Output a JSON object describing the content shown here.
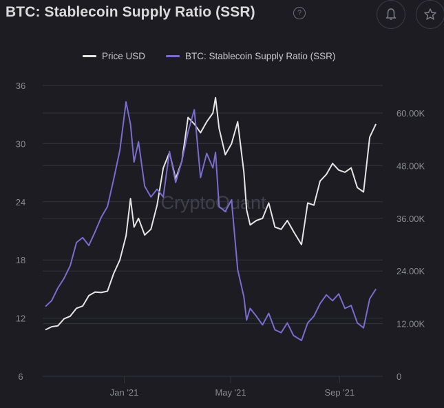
{
  "header": {
    "title": "BTC: Stablecoin Supply Ratio (SSR)",
    "help_icon": "?",
    "alert_icon": "bell-icon",
    "favorite_icon": "star-icon"
  },
  "colors": {
    "background": "#1c1c22",
    "price": "#e6e6e6",
    "ssr": "#7b6ccf",
    "grid": "#33333d",
    "axis_text": "#8a8a92",
    "watermark": "#3f3f4c"
  },
  "watermark": "CryptoQuant",
  "chart_data": {
    "type": "line",
    "title": "BTC: Stablecoin Supply Ratio (SSR)",
    "xlabel": "",
    "legend": [
      "Price USD",
      "BTC: Stablecoin Supply Ratio (SSR)"
    ],
    "legend_placement": "top-center",
    "grid": true,
    "x_ticks": [
      "Jan '21",
      "May '21",
      "Sep '21"
    ],
    "x_tick_dates": [
      "2021-01-01",
      "2021-05-01",
      "2021-09-01"
    ],
    "x_range": [
      "2020-10-04",
      "2021-10-15"
    ],
    "y_left": {
      "label": "SSR",
      "ticks": [
        "36",
        "30",
        "24",
        "18",
        "12",
        "6"
      ],
      "range": [
        6,
        36
      ]
    },
    "y_right": {
      "label": "Price USD",
      "ticks": [
        "60.00K",
        "48.00K",
        "36.00K",
        "24.00K",
        "12.00K",
        "0"
      ],
      "range": [
        0,
        60000
      ]
    },
    "x": [
      "2020-10-04",
      "2020-10-11",
      "2020-10-18",
      "2020-10-25",
      "2020-11-01",
      "2020-11-08",
      "2020-11-15",
      "2020-11-22",
      "2020-11-29",
      "2020-12-06",
      "2020-12-13",
      "2020-12-20",
      "2020-12-27",
      "2021-01-03",
      "2021-01-08",
      "2021-01-12",
      "2021-01-17",
      "2021-01-24",
      "2021-01-31",
      "2021-02-07",
      "2021-02-14",
      "2021-02-21",
      "2021-02-28",
      "2021-03-07",
      "2021-03-14",
      "2021-03-21",
      "2021-03-28",
      "2021-04-04",
      "2021-04-11",
      "2021-04-14",
      "2021-04-18",
      "2021-04-25",
      "2021-05-02",
      "2021-05-09",
      "2021-05-16",
      "2021-05-19",
      "2021-05-23",
      "2021-05-30",
      "2021-06-06",
      "2021-06-13",
      "2021-06-20",
      "2021-06-27",
      "2021-07-04",
      "2021-07-11",
      "2021-07-20",
      "2021-07-27",
      "2021-08-03",
      "2021-08-10",
      "2021-08-17",
      "2021-08-24",
      "2021-08-31",
      "2021-09-07",
      "2021-09-14",
      "2021-09-21",
      "2021-09-28",
      "2021-10-05",
      "2021-10-12"
    ],
    "series": [
      {
        "name": "Price USD",
        "color": "#e6e6e6",
        "axis": "right",
        "values": [
          10600,
          11300,
          11500,
          13100,
          13700,
          15500,
          16000,
          18400,
          19200,
          19100,
          19400,
          23400,
          26500,
          32000,
          40500,
          34000,
          36000,
          32200,
          33500,
          39000,
          47500,
          51000,
          45000,
          49000,
          59000,
          57500,
          55500,
          58000,
          60000,
          63500,
          56500,
          50500,
          53000,
          58000,
          46500,
          38000,
          34500,
          35500,
          36000,
          39500,
          34000,
          33500,
          35500,
          33000,
          30000,
          39500,
          39000,
          44500,
          46000,
          48500,
          47000,
          46500,
          47500,
          43000,
          42000,
          54500,
          57500
        ]
      },
      {
        "name": "BTC: Stablecoin Supply Ratio (SSR)",
        "color": "#7b6ccf",
        "axis": "left",
        "values": [
          13.2,
          13.8,
          15.1,
          16.1,
          17.4,
          19.8,
          20.3,
          19.5,
          20.9,
          22.4,
          23.5,
          26.3,
          29.3,
          34.3,
          32.0,
          28.1,
          30.2,
          25.6,
          24.5,
          25.3,
          24.5,
          29.2,
          26.0,
          28.2,
          31.2,
          33.5,
          26.5,
          29.0,
          27.5,
          29.1,
          23.5,
          23.0,
          24.2,
          17.0,
          14.2,
          11.8,
          13.0,
          12.2,
          11.3,
          12.5,
          10.8,
          10.5,
          11.5,
          10.2,
          9.7,
          11.5,
          12.2,
          13.5,
          14.4,
          13.8,
          14.5,
          13.0,
          13.3,
          11.5,
          11.0,
          14.0,
          15.0
        ]
      }
    ]
  }
}
